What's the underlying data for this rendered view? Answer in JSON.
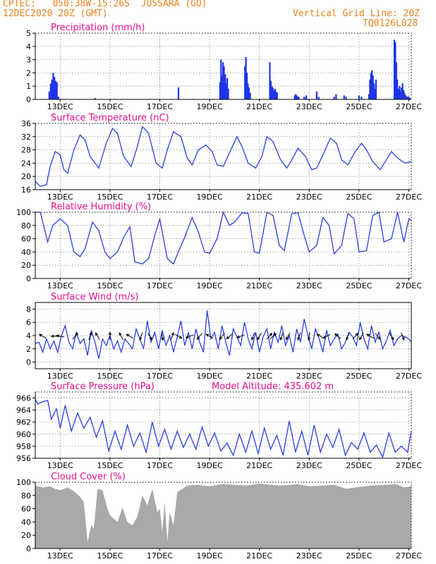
{
  "header": {
    "line1": "CPTEC:   050:38W-15:26S  JUSSARA (GO)",
    "line2": "12DEC2020 20Z (GMT)",
    "grid_note": "Vertical Grid Line: 20Z",
    "code": "TQ0126L028"
  },
  "colors": {
    "header": "#e8821e",
    "title": "#e0108c",
    "line": "#2a3fe0",
    "bar": "#1f35e6",
    "arrow": "#000000",
    "cloud": "#a9a9a9",
    "grid": "#8c8c8c"
  },
  "chart_data": [
    {
      "id": "precip",
      "type": "bar",
      "title": "Precipitation (mm/h)",
      "x_tick_labels": [
        "13DEC",
        "15DEC",
        "17DEC",
        "19DEC",
        "21DEC",
        "23DEC",
        "25DEC",
        "27DEC"
      ],
      "x_tick_days": [
        13,
        15,
        17,
        19,
        21,
        23,
        25,
        27
      ],
      "xlim": [
        12.0,
        27.1
      ],
      "ylim": [
        0,
        5
      ],
      "y_ticks": [
        0,
        1,
        2,
        3,
        4,
        5
      ],
      "grid": true,
      "color": "#1f35e6",
      "x": [
        12.56,
        12.62,
        12.67,
        12.72,
        12.77,
        12.82,
        12.87,
        12.93,
        14.4,
        17.75,
        19.42,
        19.46,
        19.5,
        19.54,
        19.58,
        19.63,
        19.67,
        19.71,
        19.75,
        20.42,
        20.46,
        20.5,
        20.54,
        20.58,
        20.63,
        21.42,
        21.46,
        21.5,
        21.54,
        21.58,
        21.63,
        21.67,
        21.71,
        22.42,
        22.46,
        22.5,
        22.54,
        22.58,
        22.8,
        22.88,
        23.3,
        23.38,
        24.0,
        24.08,
        24.4,
        24.48,
        25.0,
        25.1,
        25.4,
        25.44,
        25.48,
        25.52,
        25.56,
        25.6,
        25.64,
        25.68,
        26.42,
        26.46,
        26.5,
        26.54,
        26.58,
        26.63,
        26.67,
        26.71,
        26.75,
        26.79,
        26.83,
        26.88,
        26.92,
        26.96,
        27.0,
        27.04
      ],
      "values": [
        0.6,
        1.2,
        1.5,
        2.0,
        1.7,
        1.4,
        1.3,
        0.2,
        0.1,
        0.9,
        1.3,
        3.0,
        1.8,
        2.8,
        2.5,
        1.9,
        1.2,
        1.6,
        0.8,
        2.5,
        3.2,
        2.0,
        1.2,
        0.9,
        0.5,
        2.8,
        1.4,
        1.0,
        0.9,
        0.7,
        0.8,
        0.6,
        0.5,
        0.3,
        0.4,
        0.3,
        0.2,
        0.2,
        0.2,
        0.3,
        0.6,
        0.2,
        0.2,
        0.4,
        0.3,
        0.2,
        0.3,
        0.2,
        0.4,
        1.5,
        2.0,
        2.2,
        1.8,
        1.2,
        0.8,
        1.5,
        4.5,
        4.3,
        2.8,
        1.5,
        0.8,
        1.0,
        0.6,
        0.9,
        1.2,
        0.7,
        0.5,
        0.3,
        0.2,
        0.2,
        0.2,
        0.1
      ]
    },
    {
      "id": "temp",
      "type": "line",
      "title": "Surface Temperature (nC)",
      "x_tick_labels": [
        "13DEC",
        "15DEC",
        "17DEC",
        "19DEC",
        "21DEC",
        "23DEC",
        "25DEC",
        "27DEC"
      ],
      "x_tick_days": [
        13,
        15,
        17,
        19,
        21,
        23,
        25,
        27
      ],
      "xlim": [
        12.0,
        27.1
      ],
      "ylim": [
        16,
        36
      ],
      "y_ticks": [
        16,
        20,
        24,
        28,
        32,
        36
      ],
      "grid": true,
      "color": "#2a3fe0",
      "x": [
        12.0,
        12.2,
        12.45,
        12.6,
        12.8,
        13.0,
        13.15,
        13.3,
        13.55,
        13.8,
        14.0,
        14.2,
        14.55,
        14.85,
        15.1,
        15.3,
        15.55,
        15.85,
        16.1,
        16.3,
        16.55,
        16.85,
        17.1,
        17.3,
        17.55,
        17.85,
        18.1,
        18.3,
        18.55,
        18.85,
        19.1,
        19.3,
        19.55,
        19.85,
        20.1,
        20.3,
        20.55,
        20.85,
        21.1,
        21.3,
        21.55,
        21.85,
        22.1,
        22.3,
        22.55,
        22.85,
        23.1,
        23.3,
        23.55,
        23.85,
        24.1,
        24.3,
        24.55,
        24.85,
        25.1,
        25.3,
        25.55,
        25.85,
        26.1,
        26.3,
        26.55,
        26.85,
        27.1
      ],
      "values": [
        18.5,
        17.0,
        17.5,
        23,
        27.5,
        26.5,
        22,
        21,
        28,
        32.5,
        31,
        26,
        22.5,
        30,
        34.5,
        33,
        26,
        23,
        29,
        35,
        33,
        24,
        22.5,
        28,
        33.5,
        32,
        25.5,
        23.5,
        28,
        29.5,
        27.5,
        23.5,
        23,
        28,
        32,
        29,
        24,
        22.5,
        26,
        32,
        30.5,
        25,
        22.5,
        25,
        28.5,
        26,
        22,
        22.5,
        26.5,
        31.5,
        30,
        25,
        23.5,
        27.5,
        30,
        28,
        24.5,
        22,
        25,
        27.5,
        25.5,
        24,
        24.5
      ]
    },
    {
      "id": "rh",
      "type": "line",
      "title": "Relative Humidity (%)",
      "x_tick_labels": [
        "13DEC",
        "15DEC",
        "17DEC",
        "19DEC",
        "21DEC",
        "23DEC",
        "25DEC",
        "27DEC"
      ],
      "x_tick_days": [
        13,
        15,
        17,
        19,
        21,
        23,
        25,
        27
      ],
      "xlim": [
        12.0,
        27.1
      ],
      "ylim": [
        0,
        100
      ],
      "y_ticks": [
        0,
        20,
        40,
        60,
        80,
        100
      ],
      "grid": true,
      "color": "#2a3fe0",
      "x": [
        12.0,
        12.2,
        12.5,
        12.7,
        12.85,
        13.0,
        13.3,
        13.55,
        13.8,
        14.0,
        14.3,
        14.55,
        14.8,
        15.0,
        15.3,
        15.55,
        15.8,
        16.0,
        16.3,
        16.55,
        16.8,
        17.0,
        17.3,
        17.55,
        17.8,
        18.0,
        18.3,
        18.55,
        18.8,
        19.0,
        19.3,
        19.55,
        19.8,
        20.0,
        20.3,
        20.55,
        20.8,
        21.0,
        21.3,
        21.55,
        21.8,
        22.0,
        22.3,
        22.55,
        22.8,
        23.0,
        23.3,
        23.55,
        23.8,
        24.0,
        24.3,
        24.55,
        24.8,
        25.0,
        25.3,
        25.55,
        25.8,
        26.0,
        26.3,
        26.55,
        26.8,
        27.0,
        27.1
      ],
      "values": [
        100,
        100,
        55,
        80,
        85,
        90,
        80,
        40,
        33,
        45,
        85,
        72,
        40,
        30,
        40,
        62,
        78,
        25,
        22,
        30,
        65,
        90,
        30,
        22,
        45,
        62,
        92,
        70,
        40,
        38,
        60,
        100,
        80,
        85,
        99,
        98,
        40,
        38,
        100,
        95,
        50,
        42,
        98,
        99,
        65,
        40,
        50,
        92,
        80,
        37,
        50,
        98,
        90,
        40,
        42,
        95,
        100,
        55,
        60,
        100,
        55,
        90,
        88
      ]
    },
    {
      "id": "wind",
      "type": "line",
      "title": "Surface Wind (m/s)",
      "x_tick_labels": [
        "13DEC",
        "15DEC",
        "17DEC",
        "19DEC",
        "21DEC",
        "23DEC",
        "25DEC",
        "27DEC"
      ],
      "x_tick_days": [
        13,
        15,
        17,
        19,
        21,
        23,
        25,
        27
      ],
      "xlim": [
        12.0,
        27.1
      ],
      "ylim": [
        -1,
        9
      ],
      "y_ticks": [
        0,
        2,
        4,
        6,
        8
      ],
      "grid": true,
      "color": "#2a3fe0",
      "x": [
        12.0,
        12.15,
        12.3,
        12.45,
        12.6,
        12.75,
        12.9,
        13.05,
        13.2,
        13.35,
        13.5,
        13.65,
        13.8,
        13.95,
        14.1,
        14.25,
        14.4,
        14.55,
        14.7,
        14.85,
        15.0,
        15.15,
        15.3,
        15.45,
        15.6,
        15.75,
        15.9,
        16.05,
        16.2,
        16.35,
        16.5,
        16.65,
        16.8,
        16.95,
        17.1,
        17.25,
        17.4,
        17.55,
        17.7,
        17.85,
        18.0,
        18.15,
        18.3,
        18.45,
        18.6,
        18.75,
        18.9,
        19.05,
        19.2,
        19.35,
        19.5,
        19.65,
        19.8,
        19.95,
        20.1,
        20.25,
        20.4,
        20.55,
        20.7,
        20.85,
        21.0,
        21.15,
        21.3,
        21.45,
        21.6,
        21.75,
        21.9,
        22.05,
        22.2,
        22.35,
        22.5,
        22.65,
        22.8,
        22.95,
        23.1,
        23.25,
        23.4,
        23.55,
        23.7,
        23.85,
        24.0,
        24.15,
        24.3,
        24.45,
        24.6,
        24.75,
        24.9,
        25.05,
        25.2,
        25.35,
        25.5,
        25.65,
        25.8,
        25.95,
        26.1,
        26.25,
        26.4,
        26.55,
        26.7,
        26.85,
        27.0,
        27.1
      ],
      "values": [
        2.8,
        3.0,
        1.5,
        3.5,
        2.0,
        3.2,
        1.5,
        4.0,
        5.5,
        3.0,
        2.0,
        4.5,
        2.8,
        3.5,
        1.0,
        4.8,
        3.0,
        0.5,
        3.5,
        2.5,
        4.0,
        2.0,
        3.2,
        1.5,
        3.5,
        2.8,
        2.0,
        5.0,
        3.5,
        2.0,
        6.2,
        3.0,
        4.5,
        2.0,
        4.8,
        2.5,
        4.0,
        1.5,
        3.8,
        6.2,
        2.5,
        4.5,
        2.0,
        5.0,
        3.0,
        1.5,
        7.8,
        3.5,
        4.5,
        2.0,
        5.5,
        3.0,
        1.0,
        5.0,
        3.8,
        2.5,
        6.0,
        3.5,
        2.0,
        4.5,
        1.5,
        3.8,
        5.0,
        2.0,
        4.5,
        3.0,
        5.5,
        2.5,
        4.0,
        1.5,
        5.0,
        3.0,
        6.5,
        4.0,
        2.0,
        5.0,
        3.5,
        1.5,
        4.8,
        2.5,
        3.5,
        4.2,
        2.0,
        3.0,
        4.5,
        3.8,
        2.5,
        6.0,
        3.5,
        2.0,
        5.5,
        3.0,
        4.5,
        2.0,
        3.2,
        4.8,
        2.5,
        3.5,
        4.0,
        3.8,
        3.5,
        3.0
      ],
      "arrows": [
        {
          "x": 12.3,
          "dir": 300
        },
        {
          "x": 12.8,
          "dir": 270
        },
        {
          "x": 13.0,
          "dir": 280
        },
        {
          "x": 13.6,
          "dir": 40
        },
        {
          "x": 14.2,
          "dir": 20
        },
        {
          "x": 14.5,
          "dir": 330
        },
        {
          "x": 15.0,
          "dir": 0
        },
        {
          "x": 15.45,
          "dir": 330
        },
        {
          "x": 15.8,
          "dir": 300
        },
        {
          "x": 16.25,
          "dir": 200
        },
        {
          "x": 16.6,
          "dir": 150
        },
        {
          "x": 17.1,
          "dir": 170
        },
        {
          "x": 17.5,
          "dir": 20
        },
        {
          "x": 17.75,
          "dir": 120
        },
        {
          "x": 18.2,
          "dir": 250
        },
        {
          "x": 18.6,
          "dir": 220
        },
        {
          "x": 19.0,
          "dir": 300
        },
        {
          "x": 19.5,
          "dir": 220
        },
        {
          "x": 19.8,
          "dir": 230
        },
        {
          "x": 20.25,
          "dir": 250
        },
        {
          "x": 20.75,
          "dir": 200
        },
        {
          "x": 21.0,
          "dir": 210
        },
        {
          "x": 21.4,
          "dir": 40
        },
        {
          "x": 21.55,
          "dir": 50
        },
        {
          "x": 21.9,
          "dir": 200
        },
        {
          "x": 22.15,
          "dir": 210
        },
        {
          "x": 22.6,
          "dir": 200
        },
        {
          "x": 23.0,
          "dir": 190
        },
        {
          "x": 23.45,
          "dir": 300
        },
        {
          "x": 23.7,
          "dir": 240
        },
        {
          "x": 24.15,
          "dir": 310
        },
        {
          "x": 24.55,
          "dir": 200
        },
        {
          "x": 24.85,
          "dir": 40
        },
        {
          "x": 25.1,
          "dir": 210
        },
        {
          "x": 25.45,
          "dir": 300
        },
        {
          "x": 25.75,
          "dir": 140
        },
        {
          "x": 26.3,
          "dir": 150
        },
        {
          "x": 26.75,
          "dir": 160
        }
      ]
    },
    {
      "id": "press",
      "type": "line",
      "title": "Surface Pressure (hPa)",
      "annotation": "Model Altitude: 435.602 m",
      "x_tick_labels": [
        "13DEC",
        "15DEC",
        "17DEC",
        "19DEC",
        "21DEC",
        "23DEC",
        "25DEC",
        "27DEC"
      ],
      "x_tick_days": [
        13,
        15,
        17,
        19,
        21,
        23,
        25,
        27
      ],
      "xlim": [
        12.0,
        27.1
      ],
      "ylim": [
        956,
        967
      ],
      "y_ticks": [
        956,
        958,
        960,
        962,
        964,
        966
      ],
      "grid": true,
      "color": "#2a3fe0",
      "x": [
        12.0,
        12.1,
        12.3,
        12.5,
        12.65,
        12.85,
        13.0,
        13.2,
        13.45,
        13.7,
        13.95,
        14.2,
        14.45,
        14.7,
        14.95,
        15.2,
        15.45,
        15.7,
        15.95,
        16.2,
        16.45,
        16.7,
        16.95,
        17.2,
        17.45,
        17.7,
        17.95,
        18.2,
        18.45,
        18.7,
        18.95,
        19.2,
        19.45,
        19.7,
        19.95,
        20.2,
        20.45,
        20.7,
        20.95,
        21.2,
        21.45,
        21.7,
        21.95,
        22.2,
        22.45,
        22.7,
        22.95,
        23.2,
        23.45,
        23.7,
        23.95,
        24.2,
        24.45,
        24.7,
        24.95,
        25.2,
        25.45,
        25.7,
        25.95,
        26.2,
        26.45,
        26.7,
        26.95,
        27.1
      ],
      "values": [
        965.8,
        965.0,
        965.4,
        965.6,
        962.5,
        964.2,
        961.0,
        964.8,
        960.5,
        963.5,
        961.0,
        962.8,
        959.5,
        962.2,
        957.2,
        960.5,
        957.5,
        961.5,
        958.0,
        960.2,
        957.0,
        962.0,
        958.0,
        960.8,
        957.5,
        960.5,
        957.8,
        960.0,
        957.5,
        961.2,
        958.0,
        960.2,
        957.2,
        958.5,
        956.5,
        960.0,
        957.0,
        960.5,
        956.8,
        961.0,
        957.5,
        959.8,
        956.5,
        962.2,
        957.0,
        960.5,
        956.5,
        961.5,
        957.0,
        960.0,
        957.8,
        960.8,
        956.5,
        958.6,
        957.5,
        960.2,
        957.0,
        958.2,
        956.2,
        960.2,
        957.0,
        958.0,
        957.0,
        960.5
      ]
    },
    {
      "id": "cloud",
      "type": "area",
      "title": "Cloud Cover (%)",
      "x_tick_labels": [
        "13DEC",
        "15DEC",
        "17DEC",
        "19DEC",
        "21DEC",
        "23DEC",
        "25DEC",
        "27DEC"
      ],
      "x_tick_days": [
        13,
        15,
        17,
        19,
        21,
        23,
        25,
        27
      ],
      "xlim": [
        12.0,
        27.1
      ],
      "ylim": [
        0,
        100
      ],
      "y_ticks": [
        0,
        20,
        40,
        60,
        80,
        100
      ],
      "grid": false,
      "color": "#a9a9a9",
      "x": [
        12.0,
        12.3,
        12.6,
        12.8,
        13.0,
        13.3,
        13.6,
        13.8,
        13.95,
        14.1,
        14.25,
        14.35,
        14.5,
        14.7,
        14.9,
        15.0,
        15.15,
        15.3,
        15.5,
        15.7,
        15.9,
        16.1,
        16.3,
        16.5,
        16.7,
        16.9,
        17.0,
        17.1,
        17.2,
        17.3,
        17.4,
        17.55,
        17.7,
        17.9,
        18.1,
        18.5,
        19.0,
        19.5,
        20.0,
        20.5,
        21.0,
        21.5,
        22.0,
        22.5,
        23.0,
        23.5,
        24.0,
        24.5,
        25.0,
        25.5,
        26.0,
        26.5,
        26.8,
        27.1
      ],
      "values": [
        95,
        92,
        94,
        90,
        88,
        92,
        85,
        78,
        70,
        10,
        35,
        30,
        90,
        88,
        60,
        50,
        45,
        40,
        62,
        40,
        35,
        48,
        80,
        65,
        90,
        55,
        60,
        25,
        70,
        10,
        55,
        35,
        85,
        90,
        95,
        96,
        94,
        97,
        96,
        95,
        98,
        96,
        95,
        97,
        94,
        95,
        96,
        90,
        93,
        95,
        96,
        97,
        92,
        94
      ]
    }
  ]
}
